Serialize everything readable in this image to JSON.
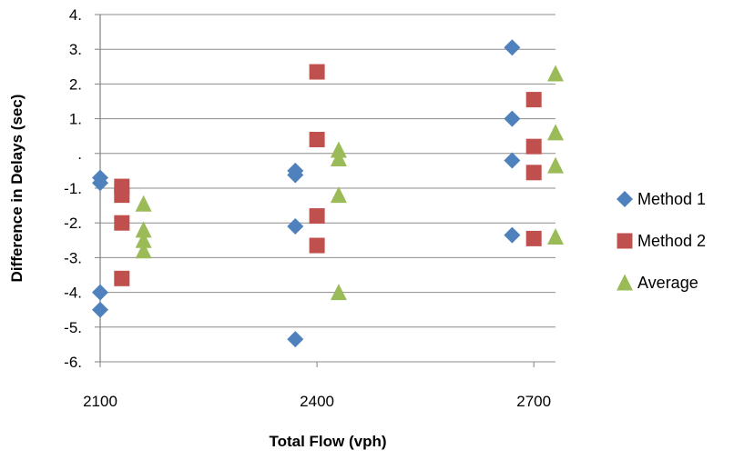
{
  "chart_data": {
    "type": "scatter",
    "title": "",
    "xlabel": "Total Flow (vph)",
    "ylabel": "Difference in Delays (sec)",
    "xlim": [
      2100,
      2730
    ],
    "ylim": [
      -6,
      4
    ],
    "x_ticks": [
      {
        "value": 2100,
        "label": "2100"
      },
      {
        "value": 2400,
        "label": "2400"
      },
      {
        "value": 2700,
        "label": "2700"
      }
    ],
    "y_ticks": [
      {
        "value": 4,
        "label": "4."
      },
      {
        "value": 3,
        "label": "3."
      },
      {
        "value": 2,
        "label": "2."
      },
      {
        "value": 1,
        "label": "1."
      },
      {
        "value": 0,
        "label": "."
      },
      {
        "value": -1,
        "label": "-1."
      },
      {
        "value": -2,
        "label": "-2."
      },
      {
        "value": -3,
        "label": "-3."
      },
      {
        "value": -4,
        "label": "-4."
      },
      {
        "value": -5,
        "label": "-5."
      },
      {
        "value": -6,
        "label": "-6."
      }
    ],
    "grid": "horizontal",
    "legend_position": "right",
    "series": [
      {
        "name": "Method 1",
        "marker": "diamond",
        "color": "#4F81BD",
        "points": [
          {
            "x": 2100,
            "y": -0.7
          },
          {
            "x": 2100,
            "y": -0.85
          },
          {
            "x": 2100,
            "y": -4.0
          },
          {
            "x": 2100,
            "y": -4.5
          },
          {
            "x": 2370,
            "y": -0.5
          },
          {
            "x": 2370,
            "y": -0.62
          },
          {
            "x": 2370,
            "y": -2.1
          },
          {
            "x": 2370,
            "y": -5.35
          },
          {
            "x": 2670,
            "y": 3.05
          },
          {
            "x": 2670,
            "y": 1.0
          },
          {
            "x": 2670,
            "y": -0.2
          },
          {
            "x": 2670,
            "y": -2.35
          }
        ]
      },
      {
        "name": "Method 2",
        "marker": "square",
        "color": "#C0504D",
        "points": [
          {
            "x": 2130,
            "y": -0.95
          },
          {
            "x": 2130,
            "y": -1.2
          },
          {
            "x": 2130,
            "y": -2.0
          },
          {
            "x": 2130,
            "y": -3.6
          },
          {
            "x": 2400,
            "y": 2.35
          },
          {
            "x": 2400,
            "y": 0.4
          },
          {
            "x": 2400,
            "y": -1.8
          },
          {
            "x": 2400,
            "y": -2.65
          },
          {
            "x": 2700,
            "y": 1.55
          },
          {
            "x": 2700,
            "y": 0.2
          },
          {
            "x": 2700,
            "y": -0.55
          },
          {
            "x": 2700,
            "y": -2.45
          }
        ]
      },
      {
        "name": "Average",
        "marker": "triangle",
        "color": "#9BBB59",
        "points": [
          {
            "x": 2160,
            "y": -1.45
          },
          {
            "x": 2160,
            "y": -2.2
          },
          {
            "x": 2160,
            "y": -2.5
          },
          {
            "x": 2160,
            "y": -2.8
          },
          {
            "x": 2430,
            "y": 0.1
          },
          {
            "x": 2430,
            "y": -0.15
          },
          {
            "x": 2430,
            "y": -1.2
          },
          {
            "x": 2430,
            "y": -4.0
          },
          {
            "x": 2730,
            "y": 2.3
          },
          {
            "x": 2730,
            "y": 0.6
          },
          {
            "x": 2730,
            "y": -0.35
          },
          {
            "x": 2730,
            "y": -2.4
          }
        ]
      }
    ]
  }
}
